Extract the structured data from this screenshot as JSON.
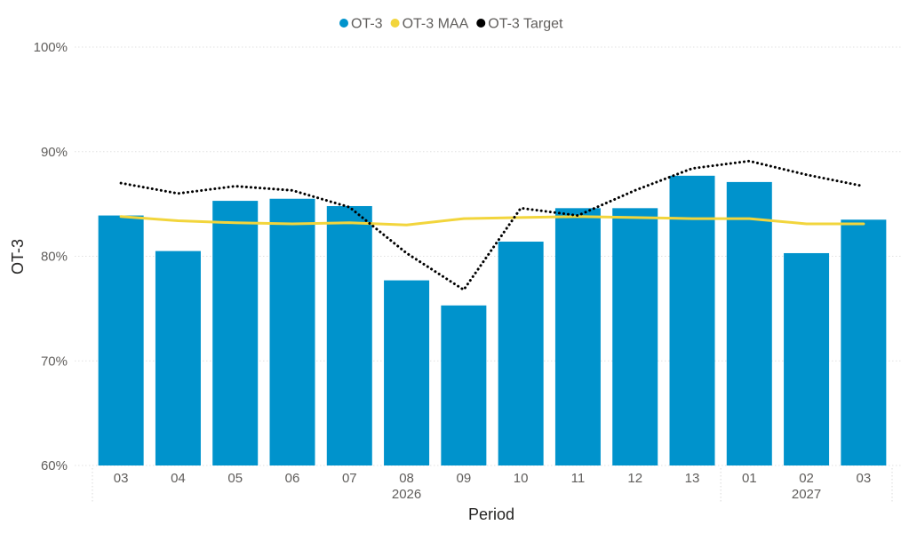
{
  "chart_data": {
    "type": "bar",
    "categories": [
      "03",
      "04",
      "05",
      "06",
      "07",
      "08",
      "09",
      "10",
      "11",
      "12",
      "13",
      "01",
      "02",
      "03"
    ],
    "year_labels": [
      {
        "label": "2026",
        "category_indices": [
          0,
          10
        ]
      },
      {
        "label": "2027",
        "category_indices": [
          11,
          13
        ]
      }
    ],
    "series": [
      {
        "name": "OT-3",
        "kind": "bar",
        "color": "#0093cc",
        "values": [
          83.9,
          80.5,
          85.3,
          85.5,
          84.8,
          77.7,
          75.3,
          81.4,
          84.6,
          84.6,
          87.7,
          87.1,
          80.3,
          83.5
        ]
      },
      {
        "name": "OT-3 MAA",
        "kind": "line",
        "color": "#f2d53c",
        "values": [
          83.8,
          83.4,
          83.2,
          83.1,
          83.2,
          83.0,
          83.6,
          83.7,
          83.8,
          83.7,
          83.6,
          83.6,
          83.1,
          83.1
        ]
      },
      {
        "name": "OT-3 Target",
        "kind": "dotted-line",
        "color": "#000000",
        "values": [
          87.0,
          86.0,
          86.7,
          86.3,
          84.7,
          80.3,
          76.8,
          84.6,
          83.9,
          86.3,
          88.4,
          89.1,
          87.8,
          86.7
        ]
      }
    ],
    "xlabel": "Period",
    "ylabel": "OT-3",
    "ylim": [
      60,
      100
    ],
    "yticks": [
      60,
      70,
      80,
      90,
      100
    ],
    "ytick_labels": [
      "60%",
      "70%",
      "80%",
      "90%",
      "100%"
    ],
    "grid": true,
    "legend_position": "top-center"
  }
}
